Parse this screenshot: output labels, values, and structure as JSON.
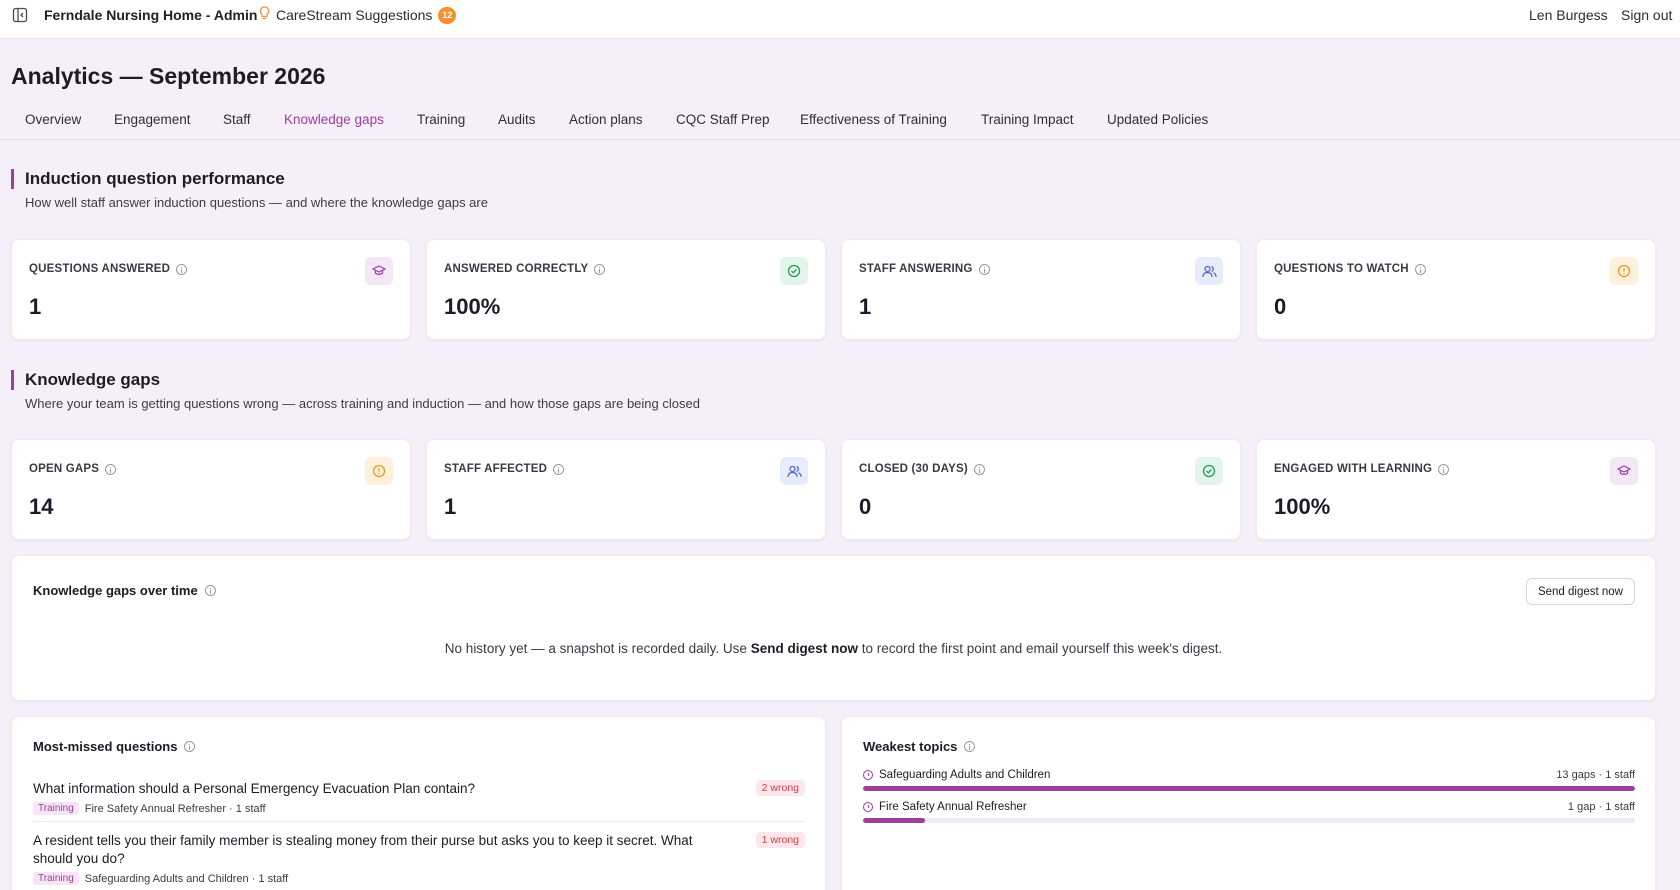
{
  "topbar": {
    "org_name": "Ferndale Nursing Home - Admin",
    "suggestions_label": "CareStream Suggestions",
    "suggestions_count": "12",
    "user_name": "Len Burgess",
    "sign_out": "Sign out"
  },
  "page": {
    "title": "Analytics — September 2026"
  },
  "tabs": [
    {
      "label": "Overview"
    },
    {
      "label": "Engagement"
    },
    {
      "label": "Staff"
    },
    {
      "label": "Knowledge gaps",
      "active": true
    },
    {
      "label": "Training"
    },
    {
      "label": "Audits"
    },
    {
      "label": "Action plans"
    },
    {
      "label": "CQC Staff Prep"
    },
    {
      "label": "Effectiveness of Training"
    },
    {
      "label": "Training Impact"
    },
    {
      "label": "Updated Policies"
    }
  ],
  "induction": {
    "title": "Induction question performance",
    "subtitle": "How well staff answer induction questions — and where the knowledge gaps are",
    "stats": [
      {
        "label": "QUESTIONS ANSWERED",
        "value": "1",
        "icon": "graduation-cap-icon"
      },
      {
        "label": "ANSWERED CORRECTLY",
        "value": "100%",
        "icon": "check-circle-icon"
      },
      {
        "label": "STAFF ANSWERING",
        "value": "1",
        "icon": "users-icon"
      },
      {
        "label": "QUESTIONS TO WATCH",
        "value": "0",
        "icon": "alert-circle-icon"
      }
    ]
  },
  "knowledge_gaps": {
    "title": "Knowledge gaps",
    "subtitle": "Where your team is getting questions wrong — across training and induction — and how those gaps are being closed",
    "stats": [
      {
        "label": "OPEN GAPS",
        "value": "14",
        "icon": "alert-circle-icon"
      },
      {
        "label": "STAFF AFFECTED",
        "value": "1",
        "icon": "users-icon"
      },
      {
        "label": "CLOSED (30 DAYS)",
        "value": "0",
        "icon": "check-circle-icon"
      },
      {
        "label": "ENGAGED WITH LEARNING",
        "value": "100%",
        "icon": "graduation-cap-icon"
      }
    ]
  },
  "over_time": {
    "title": "Knowledge gaps over time",
    "button": "Send digest now",
    "empty_pre": "No history yet — a snapshot is recorded daily. Use ",
    "empty_bold": "Send digest now",
    "empty_post": " to record the first point and email yourself this week's digest."
  },
  "most_missed": {
    "title": "Most-missed questions",
    "items": [
      {
        "question": "What information should a Personal Emergency Evacuation Plan contain?",
        "wrong": "2 wrong",
        "tag": "Training",
        "meta": "Fire Safety Annual Refresher · 1 staff"
      },
      {
        "question": "A resident tells you their family member is stealing money from their purse but asks you to keep it secret. What should you do?",
        "wrong": "1 wrong",
        "tag": "Training",
        "meta": "Safeguarding Adults and Children · 1 staff"
      }
    ]
  },
  "weakest_topics": {
    "title": "Weakest topics",
    "items": [
      {
        "name": "Safeguarding Adults and Children",
        "count": "13 gaps · 1 staff",
        "fraction": 1.0
      },
      {
        "name": "Fire Safety Annual Refresher",
        "count": "1 gap · 1 staff",
        "fraction": 0.08
      }
    ]
  },
  "colors": {
    "accent": "#9b3f9f",
    "background": "#f5eff9",
    "badge": "#f5902e"
  }
}
